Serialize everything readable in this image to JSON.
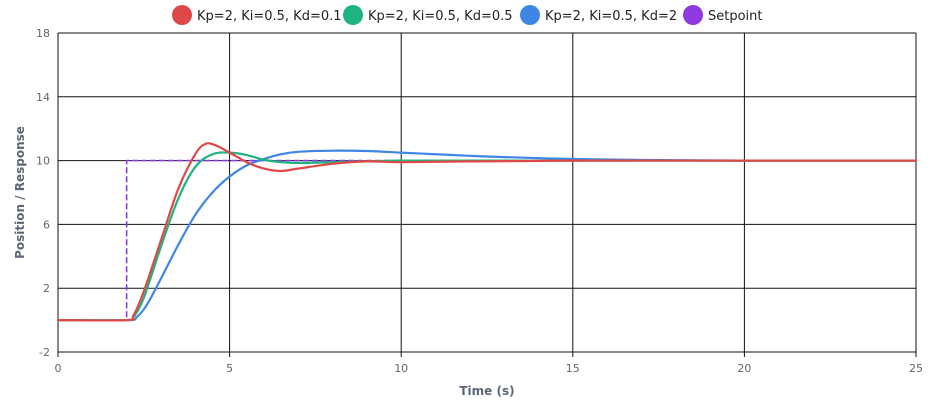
{
  "chart_data": {
    "type": "line",
    "xlabel": "Time (s)",
    "ylabel": "Position / Response",
    "xlim": [
      0,
      25
    ],
    "ylim": [
      -2,
      18
    ],
    "x_ticks": [
      0,
      5,
      10,
      15,
      20,
      25
    ],
    "y_ticks": [
      -2,
      2,
      6,
      10,
      14,
      18
    ],
    "grid": true,
    "legend_position": "top",
    "series": [
      {
        "name": "Kp=2, Ki=0.5, Kd=0.1",
        "color": "#e04848",
        "dashed": false,
        "points": [
          [
            0,
            0
          ],
          [
            2,
            0
          ],
          [
            2.2,
            0.3
          ],
          [
            2.5,
            1.8
          ],
          [
            3,
            5
          ],
          [
            3.5,
            8.2
          ],
          [
            4,
            10.4
          ],
          [
            4.3,
            11.05
          ],
          [
            4.6,
            10.95
          ],
          [
            5,
            10.5
          ],
          [
            5.5,
            9.9
          ],
          [
            6,
            9.5
          ],
          [
            6.5,
            9.35
          ],
          [
            7,
            9.5
          ],
          [
            8,
            9.8
          ],
          [
            9,
            9.95
          ],
          [
            10,
            9.9
          ],
          [
            12,
            9.95
          ],
          [
            15,
            10
          ],
          [
            20,
            10
          ],
          [
            25,
            10
          ]
        ]
      },
      {
        "name": "Kp=2, Ki=0.5, Kd=0.5",
        "color": "#1fb37f",
        "dashed": false,
        "points": [
          [
            0,
            0
          ],
          [
            2,
            0
          ],
          [
            2.2,
            0.2
          ],
          [
            2.5,
            1.4
          ],
          [
            3,
            4.6
          ],
          [
            3.5,
            7.6
          ],
          [
            4,
            9.6
          ],
          [
            4.5,
            10.4
          ],
          [
            5,
            10.5
          ],
          [
            5.5,
            10.35
          ],
          [
            6,
            10.05
          ],
          [
            6.5,
            9.9
          ],
          [
            7,
            9.85
          ],
          [
            8,
            9.9
          ],
          [
            9,
            9.95
          ],
          [
            10,
            10
          ],
          [
            12,
            10
          ],
          [
            15,
            10
          ],
          [
            20,
            10
          ],
          [
            25,
            10
          ]
        ]
      },
      {
        "name": "Kp=2, Ki=0.5, Kd=2",
        "color": "#3e86e6",
        "dashed": false,
        "points": [
          [
            0,
            0
          ],
          [
            2,
            0
          ],
          [
            2.3,
            0.2
          ],
          [
            2.6,
            1
          ],
          [
            3,
            2.6
          ],
          [
            3.5,
            4.7
          ],
          [
            4,
            6.6
          ],
          [
            4.5,
            8
          ],
          [
            5,
            9
          ],
          [
            5.5,
            9.7
          ],
          [
            6,
            10.1
          ],
          [
            6.5,
            10.4
          ],
          [
            7,
            10.55
          ],
          [
            8,
            10.62
          ],
          [
            9,
            10.6
          ],
          [
            10,
            10.5
          ],
          [
            11,
            10.4
          ],
          [
            12,
            10.3
          ],
          [
            13,
            10.22
          ],
          [
            15,
            10.1
          ],
          [
            17,
            10.04
          ],
          [
            20,
            10
          ],
          [
            25,
            10
          ]
        ]
      },
      {
        "name": "Setpoint",
        "color": "#8e3ae0",
        "dashed": true,
        "points": [
          [
            0,
            0
          ],
          [
            2,
            0
          ],
          [
            2,
            10
          ],
          [
            25,
            10
          ]
        ]
      }
    ]
  }
}
